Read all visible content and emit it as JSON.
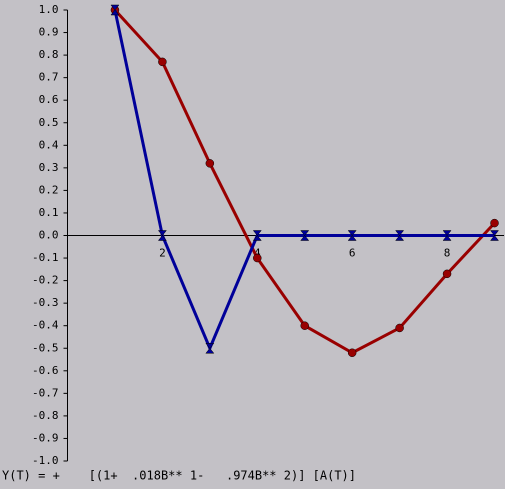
{
  "chart_data": {
    "type": "line",
    "x": [
      1,
      2,
      3,
      4,
      5,
      6,
      7,
      8,
      9
    ],
    "series": [
      {
        "color": "#990000",
        "marker": "circle",
        "values": [
          1.0,
          0.77,
          0.32,
          -0.1,
          -0.4,
          -0.52,
          -0.41,
          -0.17,
          0.055
        ]
      },
      {
        "color": "#000099",
        "marker": "hourglass",
        "values": [
          1.0,
          0.0,
          -0.5,
          0.0,
          0.0,
          0.0,
          0.0,
          0.0,
          0.0
        ]
      }
    ],
    "xlim": [
      0,
      9.2
    ],
    "ylim": [
      -1.0,
      1.0
    ],
    "xticks": [
      2,
      4,
      6,
      8
    ],
    "yticks": [
      {
        "value": 1.0,
        "label": "1.0"
      },
      0.9,
      0.8,
      0.7,
      0.6,
      0.5,
      0.4,
      0.3,
      0.2,
      0.1,
      {
        "value": 0.0,
        "label": "0.0"
      },
      -0.1,
      -0.2,
      -0.3,
      -0.4,
      -0.5,
      -0.6,
      -0.7,
      -0.8,
      -0.9,
      {
        "value": -1.0,
        "label": "-1.0"
      }
    ],
    "annotation": "Y(T) = +    [(1+  .018B** 1-   .974B** 2)] [A(T)]"
  }
}
